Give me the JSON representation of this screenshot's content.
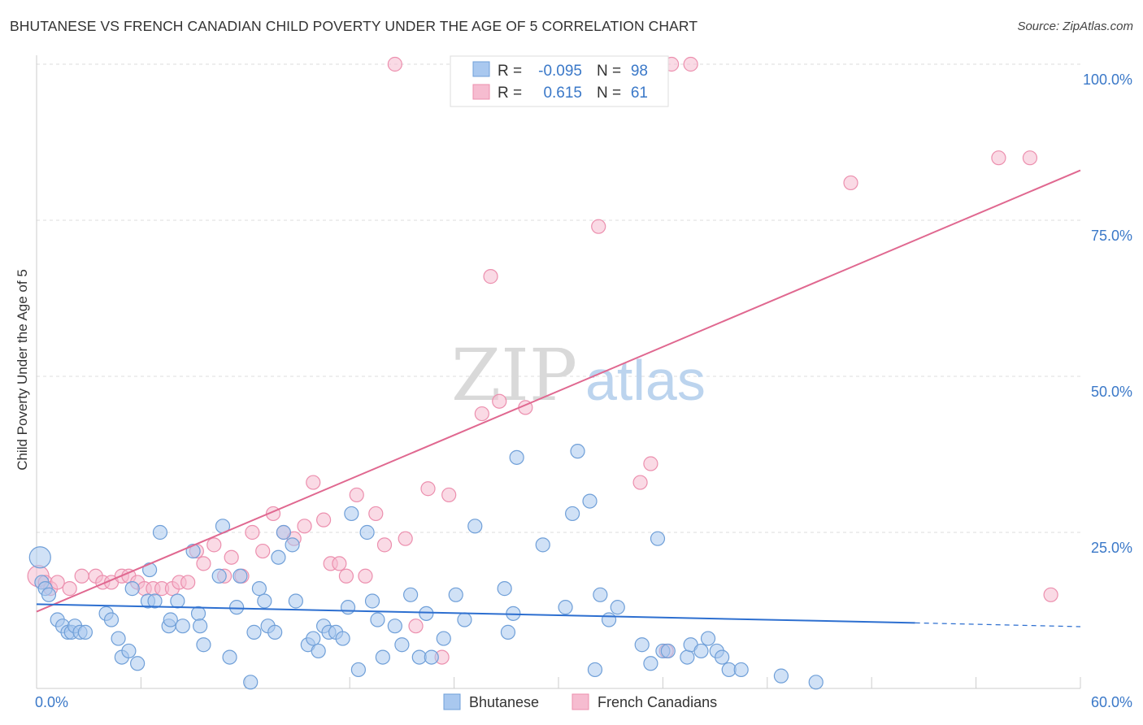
{
  "title": "BHUTANESE VS FRENCH CANADIAN CHILD POVERTY UNDER THE AGE OF 5 CORRELATION CHART",
  "source": "Source: ZipAtlas.com",
  "watermark": {
    "zip": "ZIP",
    "atlas": "atlas"
  },
  "legend_box": {
    "rows": [
      {
        "r_label": "R =",
        "r_value": "-0.095",
        "n_label": "N =",
        "n_value": "98"
      },
      {
        "r_label": "R =",
        "r_value": "0.615",
        "n_label": "N =",
        "n_value": "61"
      }
    ]
  },
  "bottom_legend": [
    "Bhutanese",
    "French Canadians"
  ],
  "colors": {
    "bhutanese_fill": "#a9c8ef",
    "bhutanese_stroke": "#6f9fd8",
    "bhutanese_line": "#2d6fd0",
    "french_fill": "#f6bcd0",
    "french_stroke": "#ec8fae",
    "french_line": "#e06890",
    "axis_text": "#3a78c8",
    "grid": "#dddddd"
  },
  "chart_data": {
    "type": "scatter",
    "title": "BHUTANESE VS FRENCH CANADIAN CHILD POVERTY UNDER THE AGE OF 5 CORRELATION CHART",
    "xlabel": "",
    "ylabel": "Child Poverty Under the Age of 5",
    "xlim": [
      0,
      60
    ],
    "ylim": [
      0,
      100
    ],
    "x_tick_labels": [
      "0.0%",
      "60.0%"
    ],
    "y_tick_labels": [
      "100.0%",
      "75.0%",
      "50.0%",
      "25.0%"
    ],
    "y_ticks": [
      100,
      75,
      50,
      25
    ],
    "grid": true,
    "legend_position": "top-center",
    "series": [
      {
        "name": "Bhutanese",
        "r": -0.095,
        "n": 98,
        "trend": {
          "x0": 0,
          "y0": 13.5,
          "x1": 50.5,
          "y1": 10.5,
          "dashed_to_x": 60,
          "dashed_to_y": 9.9
        },
        "points": [
          [
            0.2,
            21
          ],
          [
            0.3,
            17
          ],
          [
            0.5,
            16
          ],
          [
            0.7,
            15
          ],
          [
            1.2,
            11
          ],
          [
            1.5,
            10
          ],
          [
            1.8,
            9
          ],
          [
            2.0,
            9
          ],
          [
            2.2,
            10
          ],
          [
            2.5,
            9
          ],
          [
            2.8,
            9
          ],
          [
            4.0,
            12
          ],
          [
            4.3,
            11
          ],
          [
            4.7,
            8
          ],
          [
            4.9,
            5
          ],
          [
            5.3,
            6
          ],
          [
            5.8,
            4
          ],
          [
            5.5,
            16
          ],
          [
            6.5,
            19
          ],
          [
            6.4,
            14
          ],
          [
            6.8,
            14
          ],
          [
            7.1,
            25
          ],
          [
            7.6,
            10
          ],
          [
            7.7,
            11
          ],
          [
            8.1,
            14
          ],
          [
            8.4,
            10
          ],
          [
            9.0,
            22
          ],
          [
            9.3,
            12
          ],
          [
            9.4,
            10
          ],
          [
            9.6,
            7
          ],
          [
            10.5,
            18
          ],
          [
            10.7,
            26
          ],
          [
            11.1,
            5
          ],
          [
            11.5,
            13
          ],
          [
            11.7,
            18
          ],
          [
            12.3,
            1
          ],
          [
            12.5,
            9
          ],
          [
            12.8,
            16
          ],
          [
            13.1,
            14
          ],
          [
            13.3,
            10
          ],
          [
            13.7,
            9
          ],
          [
            13.9,
            21
          ],
          [
            14.2,
            25
          ],
          [
            14.7,
            23
          ],
          [
            14.9,
            14
          ],
          [
            15.6,
            7
          ],
          [
            15.9,
            8
          ],
          [
            16.2,
            6
          ],
          [
            16.5,
            10
          ],
          [
            16.8,
            9
          ],
          [
            17.2,
            9
          ],
          [
            17.6,
            8
          ],
          [
            17.9,
            13
          ],
          [
            18.1,
            28
          ],
          [
            18.5,
            3
          ],
          [
            19.0,
            25
          ],
          [
            19.3,
            14
          ],
          [
            19.6,
            11
          ],
          [
            19.9,
            5
          ],
          [
            20.6,
            10
          ],
          [
            21.0,
            7
          ],
          [
            21.5,
            15
          ],
          [
            22.0,
            5
          ],
          [
            22.4,
            12
          ],
          [
            22.7,
            5
          ],
          [
            23.4,
            8
          ],
          [
            24.1,
            15
          ],
          [
            24.6,
            11
          ],
          [
            25.2,
            26
          ],
          [
            26.9,
            16
          ],
          [
            27.1,
            9
          ],
          [
            27.4,
            12
          ],
          [
            27.6,
            37
          ],
          [
            29.1,
            23
          ],
          [
            30.4,
            13
          ],
          [
            30.8,
            28
          ],
          [
            31.1,
            38
          ],
          [
            31.8,
            30
          ],
          [
            32.4,
            15
          ],
          [
            32.1,
            3
          ],
          [
            32.9,
            11
          ],
          [
            33.4,
            13
          ],
          [
            34.8,
            7
          ],
          [
            35.3,
            4
          ],
          [
            35.7,
            24
          ],
          [
            36.0,
            6
          ],
          [
            36.3,
            6
          ],
          [
            37.4,
            5
          ],
          [
            37.6,
            7
          ],
          [
            38.2,
            6
          ],
          [
            38.6,
            8
          ],
          [
            39.1,
            6
          ],
          [
            39.4,
            5
          ],
          [
            39.8,
            3
          ],
          [
            40.5,
            3
          ],
          [
            42.8,
            2
          ],
          [
            44.8,
            1
          ]
        ]
      },
      {
        "name": "French Canadians",
        "r": 0.615,
        "n": 61,
        "trend": {
          "x0": 0,
          "y0": 12.3,
          "x1": 60,
          "y1": 83
        },
        "points": [
          [
            0.1,
            18
          ],
          [
            0.5,
            17
          ],
          [
            0.8,
            16
          ],
          [
            1.2,
            17
          ],
          [
            1.9,
            16
          ],
          [
            2.6,
            18
          ],
          [
            3.4,
            18
          ],
          [
            3.8,
            17
          ],
          [
            4.3,
            17
          ],
          [
            4.9,
            18
          ],
          [
            5.3,
            18
          ],
          [
            5.8,
            17
          ],
          [
            6.2,
            16
          ],
          [
            6.7,
            16
          ],
          [
            7.2,
            16
          ],
          [
            7.8,
            16
          ],
          [
            8.2,
            17
          ],
          [
            8.7,
            17
          ],
          [
            9.2,
            22
          ],
          [
            9.6,
            20
          ],
          [
            10.2,
            23
          ],
          [
            10.8,
            18
          ],
          [
            11.2,
            21
          ],
          [
            11.8,
            18
          ],
          [
            12.4,
            25
          ],
          [
            13.0,
            22
          ],
          [
            13.6,
            28
          ],
          [
            14.2,
            25
          ],
          [
            14.8,
            24
          ],
          [
            15.4,
            26
          ],
          [
            15.9,
            33
          ],
          [
            16.5,
            27
          ],
          [
            16.9,
            20
          ],
          [
            17.4,
            20
          ],
          [
            17.8,
            18
          ],
          [
            18.4,
            31
          ],
          [
            18.9,
            18
          ],
          [
            19.5,
            28
          ],
          [
            20.0,
            23
          ],
          [
            20.6,
            100
          ],
          [
            21.2,
            24
          ],
          [
            21.8,
            10
          ],
          [
            22.5,
            32
          ],
          [
            23.3,
            5
          ],
          [
            23.7,
            31
          ],
          [
            25.6,
            44
          ],
          [
            26.1,
            66
          ],
          [
            26.6,
            46
          ],
          [
            28.1,
            45
          ],
          [
            29.3,
            100
          ],
          [
            32.3,
            74
          ],
          [
            34.7,
            33
          ],
          [
            35.3,
            36
          ],
          [
            36.5,
            100
          ],
          [
            37.6,
            100
          ],
          [
            36.2,
            6
          ],
          [
            46.8,
            81
          ],
          [
            55.3,
            85
          ],
          [
            57.1,
            85
          ],
          [
            58.3,
            15
          ]
        ]
      }
    ]
  }
}
